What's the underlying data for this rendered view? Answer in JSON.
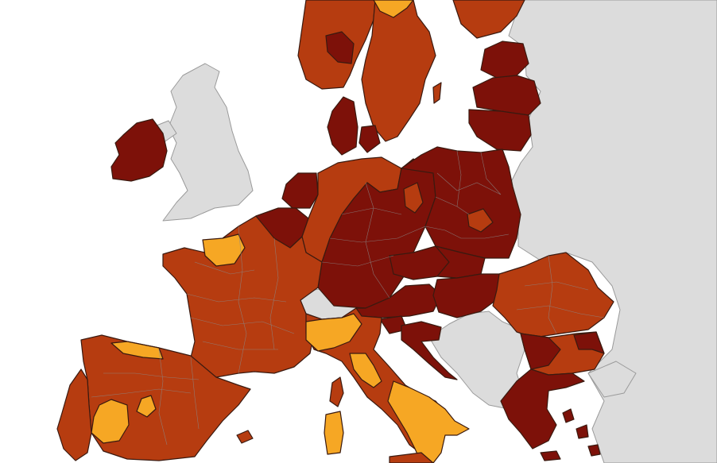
{
  "legend_colors": {
    "dark_red": "#7d1109",
    "red": "#b63c10",
    "orange": "#f6a724",
    "grey_no_data": "#dcdcdc",
    "sea": "#ffffff"
  },
  "regions": [
    {
      "name": "norway",
      "category": "red"
    },
    {
      "name": "sweden",
      "category": "red"
    },
    {
      "name": "finland",
      "category": "red"
    },
    {
      "name": "estonia",
      "category": "dark_red"
    },
    {
      "name": "latvia",
      "category": "dark_red"
    },
    {
      "name": "lithuania",
      "category": "dark_red"
    },
    {
      "name": "denmark",
      "category": "dark_red"
    },
    {
      "name": "ireland",
      "category": "dark_red"
    },
    {
      "name": "netherlands",
      "category": "dark_red"
    },
    {
      "name": "belgium",
      "category": "dark_red"
    },
    {
      "name": "luxembourg",
      "category": "dark_red"
    },
    {
      "name": "germany-west",
      "category": "red"
    },
    {
      "name": "germany-east-south",
      "category": "dark_red"
    },
    {
      "name": "poland",
      "category": "dark_red"
    },
    {
      "name": "czechia",
      "category": "dark_red"
    },
    {
      "name": "slovakia",
      "category": "dark_red"
    },
    {
      "name": "austria",
      "category": "dark_red"
    },
    {
      "name": "hungary",
      "category": "dark_red"
    },
    {
      "name": "slovenia",
      "category": "dark_red"
    },
    {
      "name": "croatia",
      "category": "dark_red"
    },
    {
      "name": "romania",
      "category": "red"
    },
    {
      "name": "bulgaria",
      "category": "dark_red"
    },
    {
      "name": "greece",
      "category": "dark_red"
    },
    {
      "name": "france",
      "category": "red"
    },
    {
      "name": "ile-de-france",
      "category": "orange"
    },
    {
      "name": "spain",
      "category": "red"
    },
    {
      "name": "portugal",
      "category": "red"
    },
    {
      "name": "madrid",
      "category": "orange"
    },
    {
      "name": "italy",
      "category": "red"
    },
    {
      "name": "italy-north",
      "category": "orange"
    },
    {
      "name": "italy-south",
      "category": "orange"
    },
    {
      "name": "sardinia",
      "category": "orange"
    },
    {
      "name": "corsica",
      "category": "red"
    },
    {
      "name": "switzerland",
      "category": "grey_no_data"
    },
    {
      "name": "united-kingdom",
      "category": "grey_no_data"
    },
    {
      "name": "balkans-non-eu",
      "category": "grey_no_data"
    },
    {
      "name": "eastern-europe-non-eu",
      "category": "grey_no_data"
    }
  ]
}
